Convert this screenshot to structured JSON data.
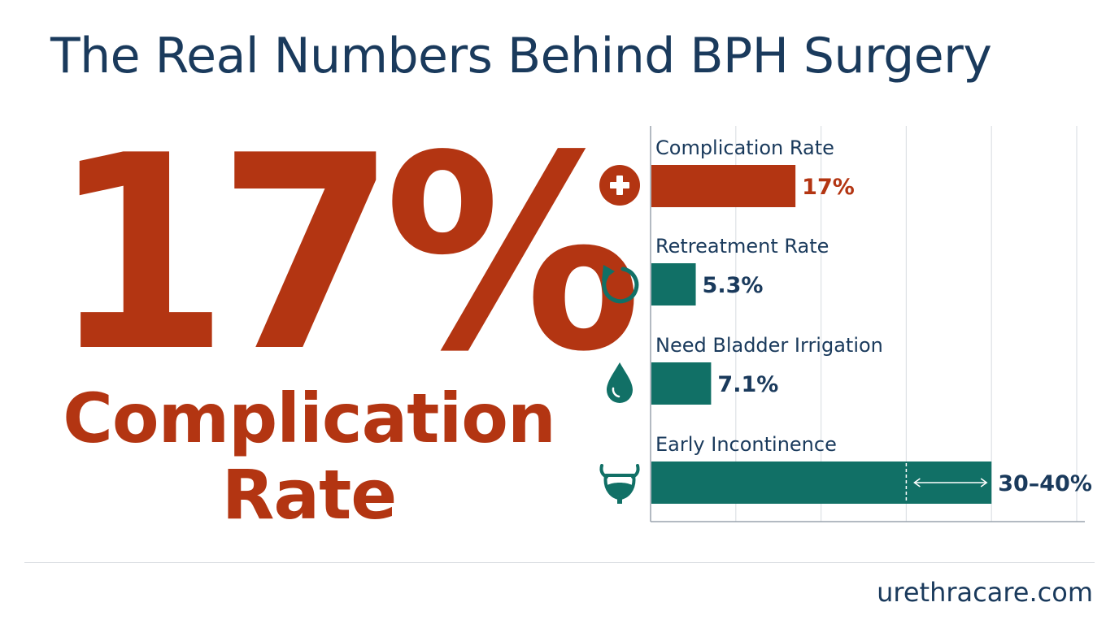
{
  "title": "The Real Numbers Behind BPH Surgery",
  "headline": {
    "value": "17%",
    "label_line1": "Complication",
    "label_line2": "Rate"
  },
  "footer": {
    "site": "urethracare.com"
  },
  "colors": {
    "accent": "#b33512",
    "teal": "#117066",
    "navy": "#1a3a5c"
  },
  "chart_data": {
    "type": "bar",
    "orientation": "horizontal",
    "categories": [
      "Complication Rate",
      "Retreatment Rate",
      "Need Bladder Irrigation",
      "Early Incontinence"
    ],
    "values": [
      17,
      5.3,
      7.1,
      35
    ],
    "ranges": [
      null,
      null,
      null,
      [
        30,
        40
      ]
    ],
    "value_labels": [
      "17%",
      "5.3%",
      "7.1%",
      "30–40%"
    ],
    "icons": [
      "medical-cross-icon",
      "retreatment-arrow-icon",
      "water-drop-icon",
      "bladder-icon"
    ],
    "bar_colors": [
      "#b33512",
      "#117066",
      "#117066",
      "#117066"
    ],
    "xlim": [
      0,
      50
    ],
    "grid": true,
    "xlabel": "",
    "ylabel": ""
  }
}
